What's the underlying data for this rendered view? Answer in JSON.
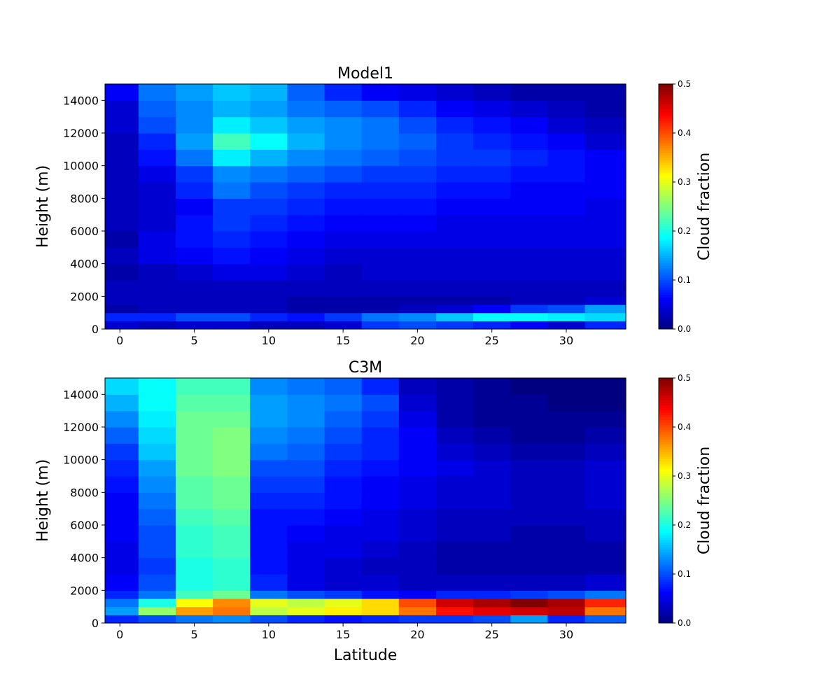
{
  "chart_data": [
    {
      "type": "heatmap",
      "title": "Model1",
      "xlabel": "",
      "ylabel": "Height (m)",
      "xlim": [
        -1,
        34
      ],
      "ylim": [
        0,
        15000
      ],
      "x_ticks": [
        "0",
        "5",
        "10",
        "15",
        "20",
        "25",
        "30"
      ],
      "y_ticks": [
        "0",
        "2000",
        "4000",
        "6000",
        "8000",
        "10000",
        "12000",
        "14000"
      ],
      "colorbar": {
        "label": "Cloud fraction",
        "min": 0.0,
        "max": 0.5,
        "ticks": [
          "0.0",
          "0.1",
          "0.2",
          "0.3",
          "0.4",
          "0.5"
        ],
        "colormap": "jet"
      },
      "x_centers": [
        0,
        2.5,
        5,
        7.5,
        10,
        12.5,
        15,
        17.5,
        20,
        22.5,
        25,
        27.5,
        30,
        32.5
      ],
      "y_edges": [
        0,
        500,
        1000,
        1500,
        2000,
        3000,
        4000,
        5000,
        6000,
        7000,
        8000,
        9000,
        10000,
        11000,
        12000,
        13000,
        14000,
        15000
      ],
      "values": [
        [
          0.04,
          0.08,
          0.02,
          0.03,
          0.03,
          0.02,
          0.03,
          0.02,
          0.03,
          0.03,
          0.03,
          0.03,
          0.03,
          0.03,
          0.04,
          0.04,
          0.06
        ],
        [
          0.03,
          0.08,
          0.03,
          0.03,
          0.03,
          0.03,
          0.05,
          0.05,
          0.04,
          0.04,
          0.04,
          0.05,
          0.07,
          0.08,
          0.1,
          0.11,
          0.12
        ],
        [
          0.04,
          0.1,
          0.03,
          0.03,
          0.03,
          0.04,
          0.06,
          0.07,
          0.07,
          0.06,
          0.08,
          0.09,
          0.12,
          0.14,
          0.13,
          0.13,
          0.14
        ],
        [
          0.04,
          0.1,
          0.03,
          0.03,
          0.03,
          0.05,
          0.07,
          0.08,
          0.09,
          0.09,
          0.12,
          0.13,
          0.18,
          0.22,
          0.18,
          0.15,
          0.16
        ],
        [
          0.03,
          0.08,
          0.03,
          0.03,
          0.03,
          0.05,
          0.06,
          0.07,
          0.08,
          0.09,
          0.1,
          0.12,
          0.15,
          0.19,
          0.16,
          0.14,
          0.15
        ],
        [
          0.03,
          0.07,
          0.02,
          0.02,
          0.03,
          0.04,
          0.05,
          0.06,
          0.07,
          0.08,
          0.09,
          0.11,
          0.13,
          0.15,
          0.14,
          0.12,
          0.11
        ],
        [
          0.04,
          0.09,
          0.02,
          0.02,
          0.03,
          0.03,
          0.04,
          0.05,
          0.06,
          0.07,
          0.08,
          0.1,
          0.12,
          0.13,
          0.13,
          0.11,
          0.08
        ],
        [
          0.09,
          0.12,
          0.02,
          0.02,
          0.03,
          0.04,
          0.04,
          0.05,
          0.06,
          0.07,
          0.08,
          0.09,
          0.11,
          0.12,
          0.12,
          0.1,
          0.06
        ],
        [
          0.1,
          0.13,
          0.03,
          0.02,
          0.03,
          0.04,
          0.04,
          0.05,
          0.06,
          0.07,
          0.08,
          0.09,
          0.1,
          0.11,
          0.1,
          0.08,
          0.05
        ],
        [
          0.09,
          0.16,
          0.04,
          0.02,
          0.03,
          0.04,
          0.04,
          0.05,
          0.05,
          0.06,
          0.07,
          0.08,
          0.09,
          0.09,
          0.08,
          0.06,
          0.04
        ],
        [
          0.08,
          0.19,
          0.06,
          0.02,
          0.03,
          0.04,
          0.04,
          0.05,
          0.05,
          0.06,
          0.07,
          0.08,
          0.09,
          0.08,
          0.07,
          0.05,
          0.03
        ],
        [
          0.06,
          0.19,
          0.09,
          0.03,
          0.03,
          0.04,
          0.04,
          0.05,
          0.05,
          0.06,
          0.06,
          0.07,
          0.08,
          0.07,
          0.06,
          0.04,
          0.02
        ],
        [
          0.04,
          0.18,
          0.1,
          0.03,
          0.03,
          0.04,
          0.04,
          0.05,
          0.05,
          0.06,
          0.06,
          0.07,
          0.07,
          0.06,
          0.04,
          0.03,
          0.02
        ],
        [
          0.08,
          0.17,
          0.14,
          0.04,
          0.03,
          0.04,
          0.04,
          0.05,
          0.05,
          0.05,
          0.06,
          0.06,
          0.06,
          0.04,
          0.03,
          0.02,
          0.02
        ]
      ]
    },
    {
      "type": "heatmap",
      "title": "C3M",
      "xlabel": "Latitude",
      "ylabel": "Height (m)",
      "xlim": [
        -1,
        34
      ],
      "ylim": [
        0,
        15000
      ],
      "x_ticks": [
        "0",
        "5",
        "10",
        "15",
        "20",
        "25",
        "30"
      ],
      "y_ticks": [
        "0",
        "2000",
        "4000",
        "6000",
        "8000",
        "10000",
        "12000",
        "14000"
      ],
      "colorbar": {
        "label": "Cloud fraction",
        "min": 0.0,
        "max": 0.5,
        "ticks": [
          "0.0",
          "0.1",
          "0.2",
          "0.3",
          "0.4",
          "0.5"
        ],
        "colormap": "jet"
      },
      "x_centers": [
        0,
        2.5,
        5,
        7.5,
        10,
        12.5,
        15,
        17.5,
        20,
        22.5,
        25,
        27.5,
        30,
        32.5
      ],
      "y_edges": [
        0,
        500,
        1000,
        1500,
        2000,
        3000,
        4000,
        5000,
        6000,
        7000,
        8000,
        9000,
        10000,
        11000,
        12000,
        13000,
        14000,
        15000
      ],
      "values": [
        [
          0.08,
          0.14,
          0.12,
          0.08,
          0.06,
          0.05,
          0.05,
          0.06,
          0.06,
          0.06,
          0.07,
          0.08,
          0.09,
          0.11,
          0.13,
          0.15,
          0.17
        ],
        [
          0.1,
          0.26,
          0.2,
          0.12,
          0.1,
          0.09,
          0.1,
          0.1,
          0.11,
          0.12,
          0.13,
          0.14,
          0.16,
          0.17,
          0.18,
          0.19,
          0.19
        ],
        [
          0.12,
          0.36,
          0.31,
          0.22,
          0.2,
          0.2,
          0.21,
          0.21,
          0.22,
          0.23,
          0.23,
          0.24,
          0.24,
          0.24,
          0.24,
          0.23,
          0.22
        ],
        [
          0.13,
          0.38,
          0.37,
          0.24,
          0.21,
          0.21,
          0.22,
          0.22,
          0.23,
          0.24,
          0.24,
          0.25,
          0.25,
          0.25,
          0.24,
          0.23,
          0.22
        ],
        [
          0.1,
          0.28,
          0.3,
          0.12,
          0.08,
          0.07,
          0.07,
          0.07,
          0.07,
          0.08,
          0.09,
          0.1,
          0.12,
          0.13,
          0.14,
          0.14,
          0.13
        ],
        [
          0.08,
          0.3,
          0.28,
          0.1,
          0.05,
          0.05,
          0.05,
          0.06,
          0.07,
          0.08,
          0.09,
          0.1,
          0.11,
          0.12,
          0.13,
          0.13,
          0.12
        ],
        [
          0.07,
          0.32,
          0.3,
          0.09,
          0.04,
          0.04,
          0.05,
          0.05,
          0.06,
          0.07,
          0.07,
          0.08,
          0.09,
          0.1,
          0.11,
          0.12,
          0.11
        ],
        [
          0.08,
          0.33,
          0.33,
          0.07,
          0.04,
          0.03,
          0.04,
          0.05,
          0.05,
          0.06,
          0.06,
          0.07,
          0.08,
          0.08,
          0.09,
          0.1,
          0.08
        ],
        [
          0.09,
          0.38,
          0.4,
          0.06,
          0.03,
          0.03,
          0.03,
          0.04,
          0.04,
          0.05,
          0.05,
          0.06,
          0.06,
          0.06,
          0.05,
          0.04,
          0.03
        ],
        [
          0.09,
          0.43,
          0.46,
          0.08,
          0.03,
          0.02,
          0.02,
          0.03,
          0.03,
          0.04,
          0.04,
          0.05,
          0.04,
          0.03,
          0.02,
          0.02,
          0.02
        ],
        [
          0.1,
          0.45,
          0.48,
          0.08,
          0.03,
          0.02,
          0.02,
          0.03,
          0.03,
          0.04,
          0.04,
          0.04,
          0.03,
          0.02,
          0.01,
          0.01,
          0.01
        ],
        [
          0.14,
          0.46,
          0.5,
          0.09,
          0.03,
          0.02,
          0.02,
          0.02,
          0.03,
          0.03,
          0.03,
          0.03,
          0.02,
          0.01,
          0.01,
          0.01,
          0.0
        ],
        [
          0.08,
          0.47,
          0.48,
          0.1,
          0.03,
          0.02,
          0.02,
          0.02,
          0.03,
          0.03,
          0.03,
          0.03,
          0.02,
          0.01,
          0.01,
          0.0,
          0.0
        ],
        [
          0.11,
          0.38,
          0.42,
          0.12,
          0.04,
          0.02,
          0.02,
          0.03,
          0.03,
          0.04,
          0.04,
          0.04,
          0.03,
          0.02,
          0.01,
          0.0,
          0.0
        ]
      ]
    }
  ]
}
